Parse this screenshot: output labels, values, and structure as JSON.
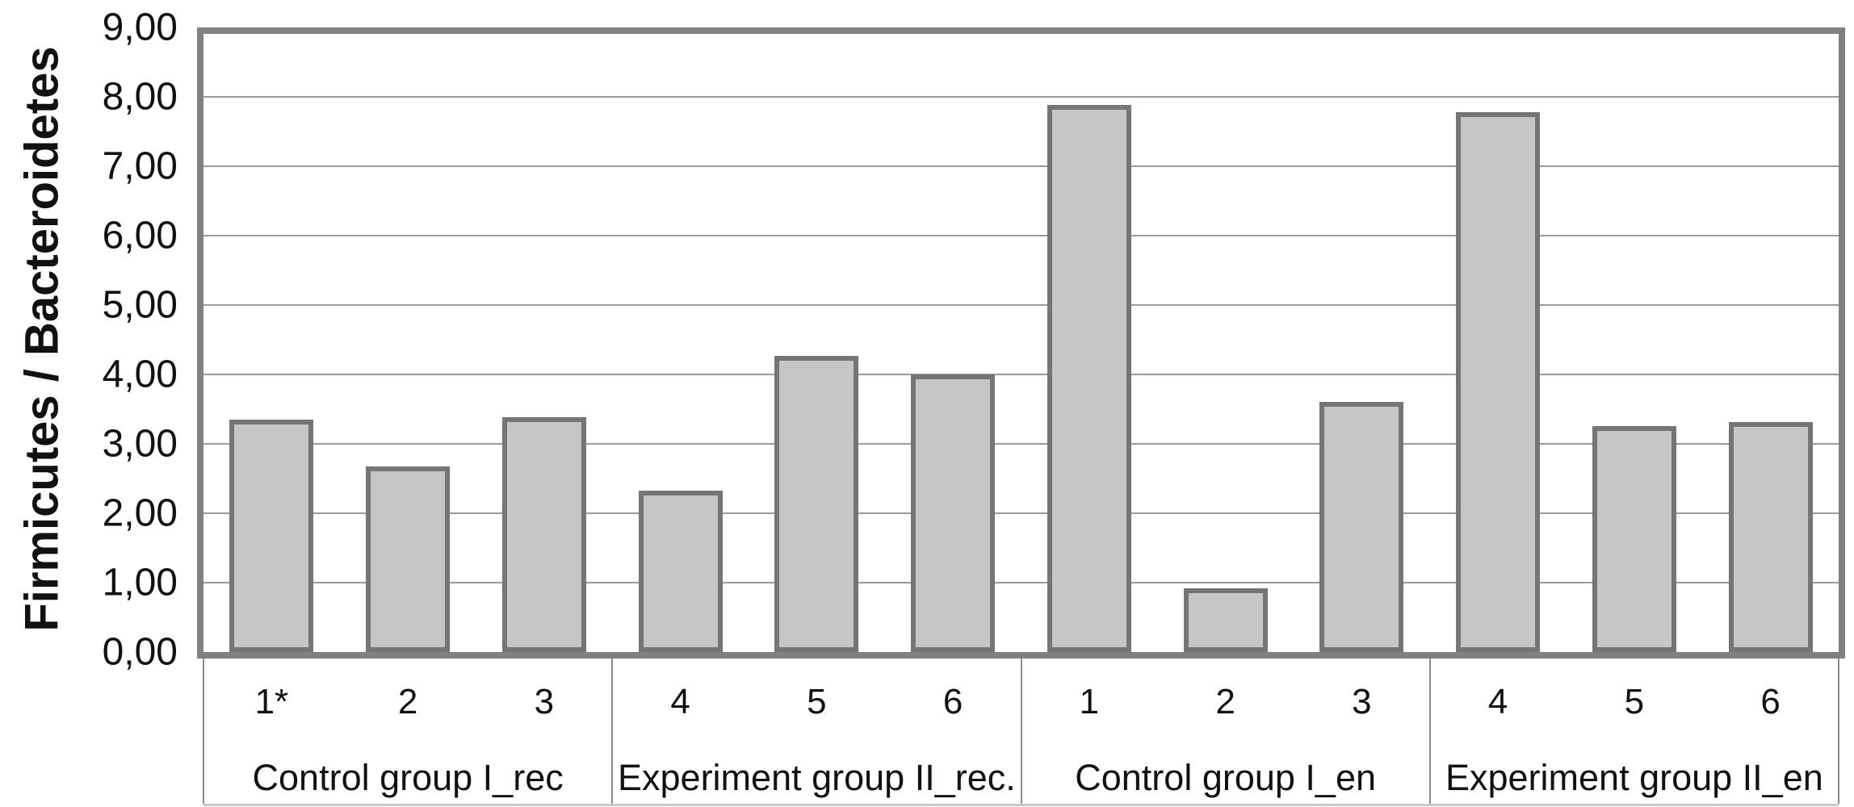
{
  "chart_data": {
    "type": "bar",
    "title": "",
    "ylabel": "Firmicutes / Bacteroidetes",
    "ylim": [
      0,
      9
    ],
    "ytick_step": 1,
    "ytick_labels": [
      "0,00",
      "1,00",
      "2,00",
      "3,00",
      "4,00",
      "5,00",
      "6,00",
      "7,00",
      "8,00",
      "9,00"
    ],
    "grid": true,
    "legend": "none",
    "groups": [
      {
        "label": "Control group I_rec",
        "categories": [
          "1*",
          "2",
          "3"
        ],
        "values": [
          3.35,
          2.67,
          3.38
        ]
      },
      {
        "label": "Experiment group II_rec.",
        "categories": [
          "4",
          "5",
          "6"
        ],
        "values": [
          2.33,
          4.27,
          4.0
        ]
      },
      {
        "label": "Control group I_en",
        "categories": [
          "1",
          "2",
          "3"
        ],
        "values": [
          7.88,
          0.92,
          3.6
        ]
      },
      {
        "label": "Experiment group II_en",
        "categories": [
          "4",
          "5",
          "6"
        ],
        "values": [
          7.78,
          3.25,
          3.31
        ]
      }
    ],
    "colors": {
      "bar_fill": "#c5c6c8",
      "bar_border": "#757575",
      "axis": "#808080",
      "gridline": "#9a9a9a",
      "separator": "#8c8c8c",
      "text": "#111111"
    }
  }
}
